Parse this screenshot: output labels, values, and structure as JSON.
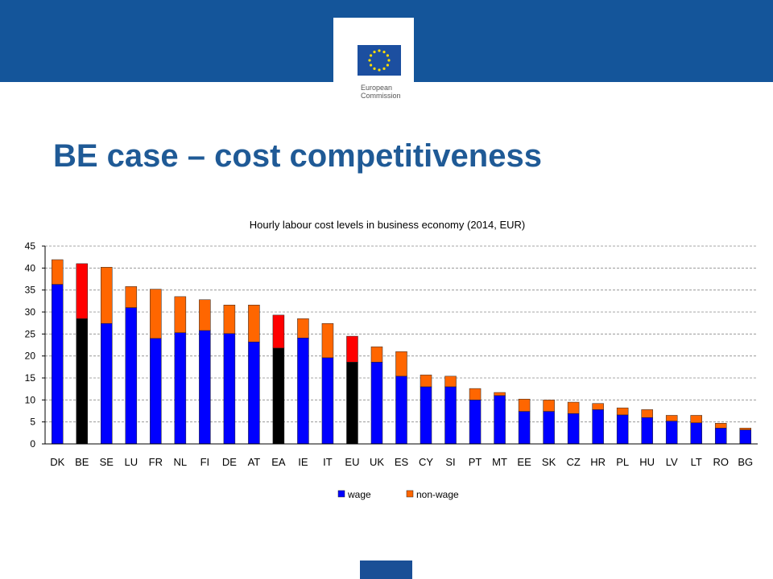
{
  "header": {
    "logo_line1": "European",
    "logo_line2": "Commission"
  },
  "slide": {
    "title": "BE case – cost competitiveness"
  },
  "colors": {
    "brand_blue": "#14559a",
    "title_blue": "#1f5a96",
    "wage": "#0000ff",
    "non_wage": "#ff6600",
    "highlight_wage": "#000000",
    "highlight_non_wage": "#ff0000"
  },
  "chart_data": {
    "type": "bar",
    "stacked": true,
    "title": "Hourly labour cost levels in business economy (2014, EUR)",
    "xlabel": "",
    "ylabel": "",
    "ylim": [
      0,
      45
    ],
    "yticks": [
      0,
      5,
      10,
      15,
      20,
      25,
      30,
      35,
      40,
      45
    ],
    "grid": true,
    "legend_position": "bottom",
    "categories": [
      "DK",
      "BE",
      "SE",
      "LU",
      "FR",
      "NL",
      "FI",
      "DE",
      "AT",
      "EA",
      "IE",
      "IT",
      "EU",
      "UK",
      "ES",
      "CY",
      "SI",
      "PT",
      "MT",
      "EE",
      "SK",
      "CZ",
      "HR",
      "PL",
      "HU",
      "LV",
      "LT",
      "RO",
      "BG"
    ],
    "highlighted": [
      "BE",
      "EA",
      "EU"
    ],
    "series": [
      {
        "name": "wage",
        "values": [
          36.3,
          28.5,
          27.4,
          31.0,
          24.0,
          25.3,
          25.8,
          25.1,
          23.2,
          21.8,
          24.1,
          19.6,
          18.6,
          18.6,
          15.4,
          13.0,
          13.0,
          10.0,
          11.0,
          7.4,
          7.4,
          6.9,
          7.8,
          6.6,
          6.0,
          5.2,
          4.8,
          3.6,
          3.2
        ]
      },
      {
        "name": "non-wage",
        "values": [
          5.6,
          12.5,
          12.8,
          4.8,
          11.2,
          8.2,
          7.0,
          6.5,
          8.4,
          7.5,
          4.4,
          7.8,
          5.9,
          3.5,
          5.6,
          2.7,
          2.4,
          2.6,
          0.7,
          2.8,
          2.6,
          2.6,
          1.4,
          1.6,
          1.8,
          1.3,
          1.7,
          1.1,
          0.4
        ]
      }
    ]
  }
}
